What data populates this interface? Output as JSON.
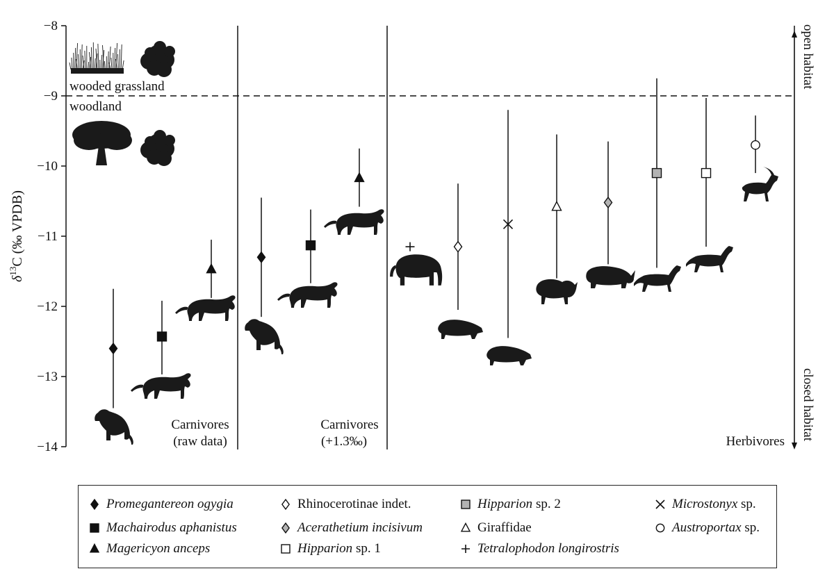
{
  "chart_data": {
    "type": "scatter",
    "ylabel": "δ13C (‰ VPDB)",
    "ylim": [
      -14,
      -8
    ],
    "yticks": [
      -8,
      -9,
      -10,
      -11,
      -12,
      -13,
      -14
    ],
    "ytick_labels": [
      "−8",
      "−9",
      "−10",
      "−11",
      "−12",
      "−13",
      "−14"
    ],
    "threshold": -9,
    "habitat_labels": {
      "above": "wooded grassland",
      "below": "woodland"
    },
    "side_labels": {
      "top": "open habitat",
      "bottom": "closed habitat"
    },
    "panels": [
      {
        "title": "Carnivores",
        "subtitle": "(raw data)"
      },
      {
        "title": "Carnivores",
        "subtitle": "(+1.3‰)"
      },
      {
        "title": "Herbivores",
        "subtitle": ""
      }
    ],
    "series": [
      {
        "name": "Promegantereon ogygia",
        "italic_part": "Promegantereon ogygia",
        "plain_part": "",
        "marker": "diamond-filled",
        "panel": 0,
        "slot": 0,
        "mean": -12.6,
        "min": -13.45,
        "max": -11.75
      },
      {
        "name": "Machairodus aphanistus",
        "italic_part": "Machairodus aphanistus",
        "plain_part": "",
        "marker": "square-filled",
        "panel": 0,
        "slot": 1,
        "mean": -12.43,
        "min": -12.97,
        "max": -11.92
      },
      {
        "name": "Magericyon anceps",
        "italic_part": "Magericyon anceps",
        "plain_part": "",
        "marker": "triangle-filled",
        "panel": 0,
        "slot": 2,
        "mean": -11.47,
        "min": -11.88,
        "max": -11.05
      },
      {
        "name": "Promegantereon ogygia",
        "italic_part": "Promegantereon ogygia",
        "plain_part": "",
        "marker": "diamond-filled",
        "panel": 1,
        "slot": 0,
        "mean": -11.3,
        "min": -12.15,
        "max": -10.45
      },
      {
        "name": "Machairodus aphanistus",
        "italic_part": "Machairodus aphanistus",
        "plain_part": "",
        "marker": "square-filled",
        "panel": 1,
        "slot": 1,
        "mean": -11.13,
        "min": -11.67,
        "max": -10.62
      },
      {
        "name": "Magericyon anceps",
        "italic_part": "Magericyon anceps",
        "plain_part": "",
        "marker": "triangle-filled",
        "panel": 1,
        "slot": 2,
        "mean": -10.17,
        "min": -10.58,
        "max": -9.75
      },
      {
        "name": "Tetralophodon longirostris",
        "italic_part": "Tetralophodon longirostris",
        "plain_part": "",
        "marker": "plus",
        "panel": 2,
        "slot": 0,
        "mean": -11.15,
        "min": null,
        "max": null
      },
      {
        "name": "Rhinocerotinae indet.",
        "italic_part": "",
        "plain_part": "Rhinocerotinae indet.",
        "marker": "diamond-open",
        "panel": 2,
        "slot": 1,
        "mean": -11.15,
        "min": -12.05,
        "max": -10.25
      },
      {
        "name": "Microstonyx sp.",
        "italic_part": "Microstonyx",
        "plain_part": " sp.",
        "marker": "x",
        "panel": 2,
        "slot": 2,
        "mean": -10.83,
        "min": -12.45,
        "max": -9.2
      },
      {
        "name": "Giraffidae",
        "italic_part": "",
        "plain_part": "Giraffidae",
        "marker": "triangle-open",
        "panel": 2,
        "slot": 3,
        "mean": -10.58,
        "min": -11.6,
        "max": -9.55
      },
      {
        "name": "Acerathetium incisivum",
        "italic_part": "Acerathetium incisivum",
        "plain_part": "",
        "marker": "diamond-grey",
        "panel": 2,
        "slot": 4,
        "mean": -10.52,
        "min": -11.4,
        "max": -9.65
      },
      {
        "name": "Hipparion sp. 2",
        "italic_part": "Hipparion",
        "plain_part": " sp. 2",
        "marker": "square-grey",
        "panel": 2,
        "slot": 5,
        "mean": -10.1,
        "min": -11.45,
        "max": -8.75
      },
      {
        "name": "Hipparion sp. 1",
        "italic_part": "Hipparion",
        "plain_part": " sp. 1",
        "marker": "square-open",
        "panel": 2,
        "slot": 6,
        "mean": -10.1,
        "min": -11.15,
        "max": -9.03
      },
      {
        "name": "Austroportax sp.",
        "italic_part": "Austroportax",
        "plain_part": " sp.",
        "marker": "circle-open",
        "panel": 2,
        "slot": 7,
        "mean": -9.7,
        "min": -10.1,
        "max": -9.28
      }
    ],
    "legend": [
      {
        "marker": "diamond-filled",
        "italic": "Promegantereon ogygia",
        "plain": ""
      },
      {
        "marker": "square-filled",
        "italic": "Machairodus aphanistus",
        "plain": ""
      },
      {
        "marker": "triangle-filled",
        "italic": "Magericyon anceps",
        "plain": ""
      },
      {
        "marker": "diamond-open",
        "italic": "",
        "plain": "Rhinocerotinae indet."
      },
      {
        "marker": "diamond-grey",
        "italic": "Acerathetium incisivum",
        "plain": ""
      },
      {
        "marker": "square-open",
        "italic": "Hipparion",
        "plain": " sp. 1"
      },
      {
        "marker": "square-grey",
        "italic": "Hipparion",
        "plain": " sp. 2"
      },
      {
        "marker": "triangle-open",
        "italic": "",
        "plain": "Giraffidae"
      },
      {
        "marker": "plus",
        "italic": "Tetralophodon longirostris",
        "plain": ""
      },
      {
        "marker": "x",
        "italic": "Microstonyx",
        "plain": " sp."
      },
      {
        "marker": "circle-open",
        "italic": "Austroportax",
        "plain": " sp."
      }
    ],
    "colors": {
      "ink": "#111111",
      "grey_marker": "#b3b3b3",
      "silhouette": "#1a1a1a"
    }
  }
}
